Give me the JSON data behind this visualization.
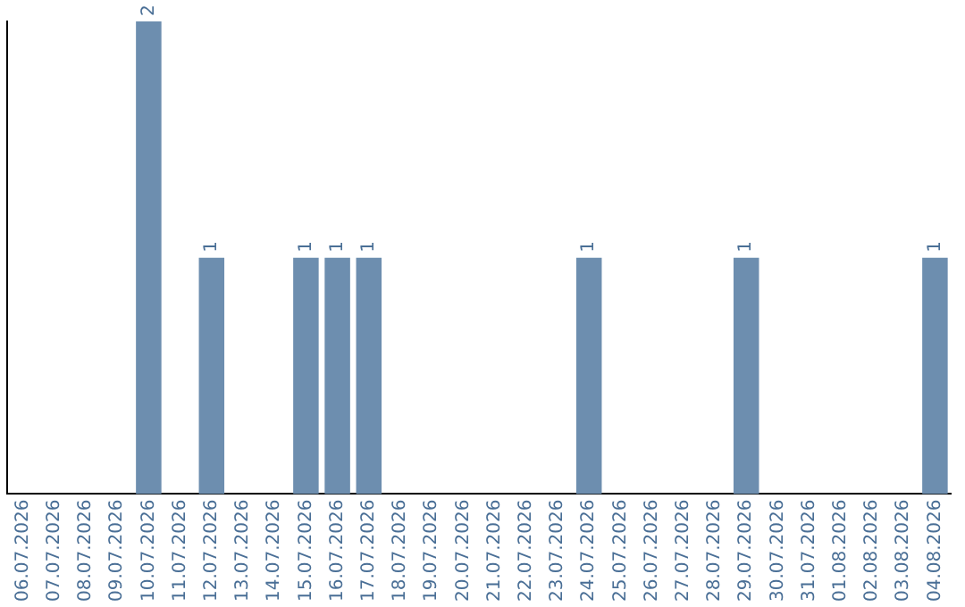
{
  "chart_data": {
    "type": "bar",
    "categories": [
      "06.07.2026",
      "07.07.2026",
      "08.07.2026",
      "09.07.2026",
      "10.07.2026",
      "11.07.2026",
      "12.07.2026",
      "13.07.2026",
      "14.07.2026",
      "15.07.2026",
      "16.07.2026",
      "17.07.2026",
      "18.07.2026",
      "19.07.2026",
      "20.07.2026",
      "21.07.2026",
      "22.07.2026",
      "23.07.2026",
      "24.07.2026",
      "25.07.2026",
      "26.07.2026",
      "27.07.2026",
      "28.07.2026",
      "29.07.2026",
      "30.07.2026",
      "31.07.2026",
      "01.08.2026",
      "02.08.2026",
      "03.08.2026",
      "04.08.2026"
    ],
    "values": [
      null,
      null,
      null,
      null,
      2,
      null,
      1,
      null,
      null,
      1,
      1,
      1,
      null,
      null,
      null,
      null,
      null,
      null,
      1,
      null,
      null,
      null,
      null,
      1,
      null,
      null,
      null,
      null,
      null,
      1
    ],
    "color": "#6d8eaf",
    "ylim": [
      0,
      2
    ],
    "data_labels": true,
    "grid": false,
    "legend": false,
    "tick_labels": "x"
  }
}
